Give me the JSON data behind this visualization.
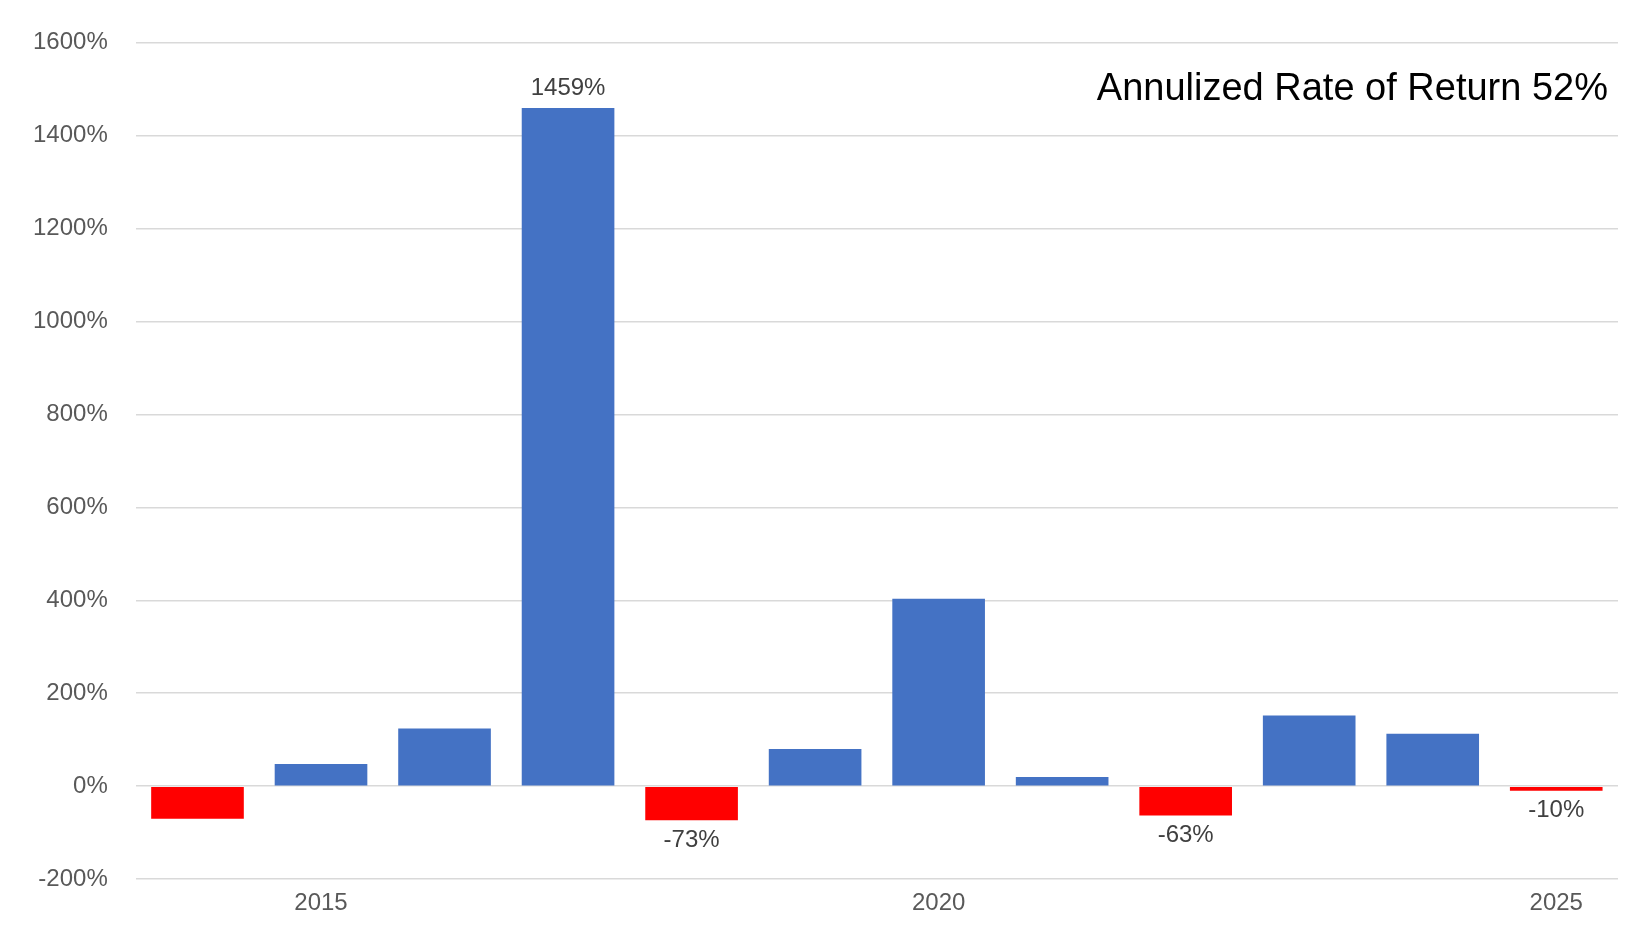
{
  "chart_data": {
    "type": "bar",
    "categories": [
      null,
      "2015",
      null,
      null,
      null,
      null,
      "2020",
      null,
      null,
      null,
      null,
      "2025"
    ],
    "values": [
      -70,
      48,
      124,
      1459,
      -73,
      80,
      403,
      20,
      -63,
      152,
      113,
      -10
    ],
    "colors": [
      "#ff0000",
      "#4472c4",
      "#4472c4",
      "#4472c4",
      "#ff0000",
      "#4472c4",
      "#4472c4",
      "#4472c4",
      "#ff0000",
      "#4472c4",
      "#4472c4",
      "#ff0000"
    ],
    "value_labels": [
      null,
      null,
      null,
      "1459%",
      "-73%",
      null,
      null,
      null,
      "-63%",
      null,
      null,
      "-10%"
    ],
    "ylim": [
      -200,
      1600
    ],
    "yticks": [
      {
        "value": -200,
        "label": "-200%"
      },
      {
        "value": 0,
        "label": "0%"
      },
      {
        "value": 200,
        "label": "200%"
      },
      {
        "value": 400,
        "label": "400%"
      },
      {
        "value": 600,
        "label": "600%"
      },
      {
        "value": 800,
        "label": "800%"
      },
      {
        "value": 1000,
        "label": "1000%"
      },
      {
        "value": 1200,
        "label": "1200%"
      },
      {
        "value": 1400,
        "label": "1400%"
      },
      {
        "value": 1600,
        "label": "1600%"
      }
    ],
    "grid": "y",
    "legend": false,
    "annotations": [
      "Annulized Rate of Return 52%"
    ]
  }
}
